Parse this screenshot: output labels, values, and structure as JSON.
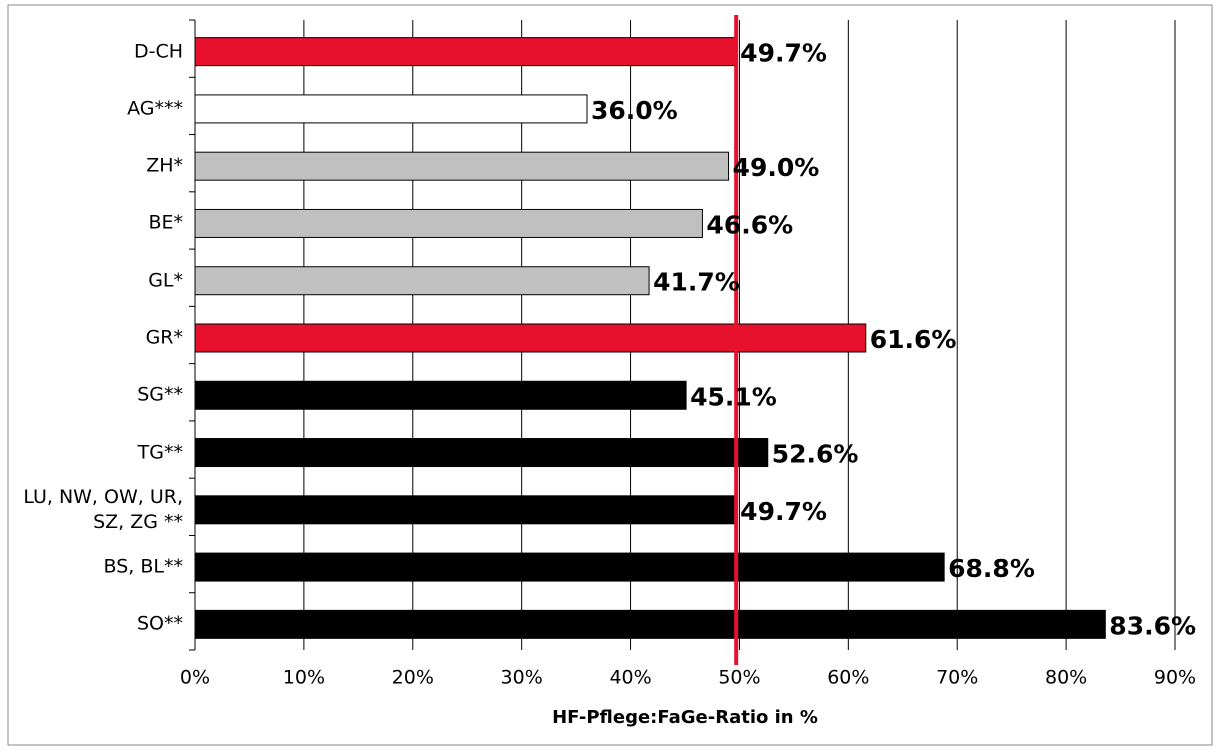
{
  "chart_data": {
    "type": "barh",
    "x_label": "HF-Pflege:FaGe-Ratio in %",
    "categories": [
      "D-CH",
      "AG***",
      "ZH*",
      "BE*",
      "GL*",
      "GR*",
      "SG**",
      "TG**",
      "LU, NW, OW, UR, SZ, ZG **",
      "BS, BL**",
      "SO**"
    ],
    "values": [
      49.7,
      36.0,
      49.0,
      46.6,
      41.7,
      61.6,
      45.1,
      52.6,
      49.7,
      68.8,
      83.6
    ],
    "value_labels": [
      "49.7%",
      "36.0%",
      "49.0%",
      "46.6%",
      "41.7%",
      "61.6%",
      "45.1%",
      "52.6%",
      "49.7%",
      "68.8%",
      "83.6%"
    ],
    "colors": [
      "#e8112d",
      "#ffffff",
      "#c0c0c0",
      "#c0c0c0",
      "#c0c0c0",
      "#e8112d",
      "#000000",
      "#000000",
      "#000000",
      "#000000",
      "#000000"
    ],
    "xlim": [
      0,
      90
    ],
    "xticks": [
      {
        "value": 0,
        "label": "0%"
      },
      {
        "value": 10,
        "label": "10%"
      },
      {
        "value": 20,
        "label": "20%"
      },
      {
        "value": 30,
        "label": "30%"
      },
      {
        "value": 40,
        "label": "40%"
      },
      {
        "value": 50,
        "label": "50%"
      },
      {
        "value": 60,
        "label": "60%"
      },
      {
        "value": 70,
        "label": "70%"
      },
      {
        "value": 80,
        "label": "80%"
      },
      {
        "value": 90,
        "label": "90%"
      }
    ],
    "grid": true,
    "reference_line": {
      "value": 49.7,
      "color": "#e8112d"
    }
  }
}
